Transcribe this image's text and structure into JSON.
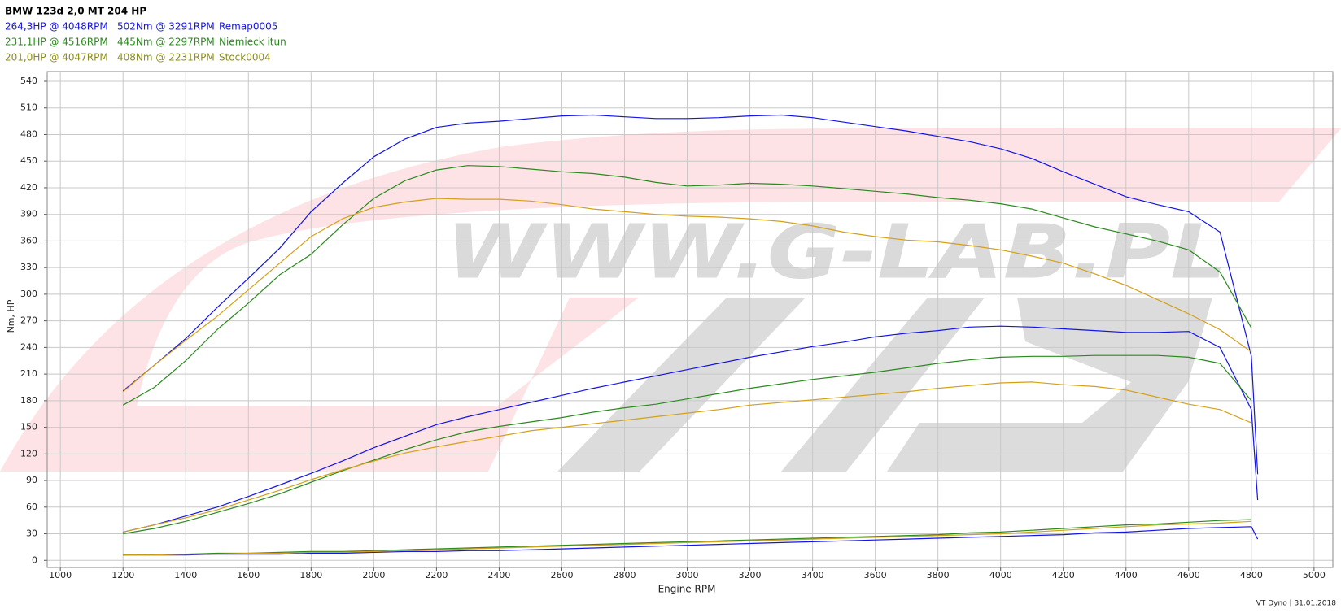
{
  "chart_data": {
    "type": "line",
    "title": "BMW 123d 2,0 MT 204 HP",
    "watermark": "WWW.G-LAB.PL",
    "x_label": "Engine RPM",
    "y_label": "Nm, HP",
    "footer": "VT Dyno | 31.01.2018",
    "xlim": [
      958,
      5060
    ],
    "ylim": [
      -8,
      551
    ],
    "xticks": [
      1000,
      1200,
      1400,
      1600,
      1800,
      2000,
      2200,
      2400,
      2600,
      2800,
      3000,
      3200,
      3400,
      3600,
      3800,
      4000,
      4200,
      4400,
      4600,
      4800,
      5000
    ],
    "yticks": [
      0,
      30,
      60,
      90,
      120,
      150,
      180,
      210,
      240,
      270,
      300,
      330,
      360,
      390,
      420,
      450,
      480,
      510,
      540
    ],
    "grid": true,
    "series": [
      {
        "name": "Remap0005",
        "color": "#1414e6",
        "power_summary": "264,3HP @  4048RPM",
        "torque_summary": "502Nm @ 3291RPM",
        "x": [
          1200,
          1300,
          1400,
          1500,
          1600,
          1700,
          1800,
          1900,
          2000,
          2100,
          2200,
          2300,
          2400,
          2500,
          2600,
          2700,
          2800,
          2900,
          3000,
          3100,
          3200,
          3300,
          3400,
          3500,
          3600,
          3700,
          3800,
          3900,
          4000,
          4100,
          4200,
          4300,
          4400,
          4500,
          4600,
          4700,
          4800,
          4820
        ],
        "torque": [
          191,
          220,
          250,
          285,
          318,
          352,
          393,
          425,
          455,
          475,
          488,
          493,
          495,
          498,
          501,
          502,
          500,
          498,
          498,
          499,
          501,
          502,
          499,
          494,
          489,
          484,
          478,
          472,
          464,
          453,
          438,
          424,
          410,
          401,
          393,
          370,
          230,
          97
        ],
        "power": [
          32,
          40,
          50,
          60,
          72,
          85,
          98,
          112,
          127,
          140,
          153,
          162,
          170,
          178,
          186,
          194,
          201,
          208,
          215,
          222,
          229,
          235,
          241,
          246,
          252,
          256,
          259,
          263,
          264,
          263,
          261,
          259,
          257,
          257,
          258,
          240,
          170,
          68
        ],
        "loss": [
          6,
          6,
          6,
          7,
          7,
          7,
          8,
          8,
          9,
          10,
          10,
          11,
          11,
          12,
          13,
          14,
          15,
          16,
          17,
          18,
          19,
          20,
          21,
          22,
          23,
          24,
          25,
          26,
          27,
          28,
          29,
          31,
          32,
          34,
          36,
          37,
          38,
          24
        ]
      },
      {
        "name": "Niemieck itun",
        "color": "#2a8a1e",
        "power_summary": "231,1HP @  4516RPM",
        "torque_summary": "445Nm @ 2297RPM",
        "x": [
          1200,
          1300,
          1400,
          1500,
          1600,
          1700,
          1800,
          1900,
          2000,
          2100,
          2200,
          2300,
          2400,
          2500,
          2600,
          2700,
          2800,
          2900,
          3000,
          3100,
          3200,
          3300,
          3400,
          3500,
          3600,
          3700,
          3800,
          3900,
          4000,
          4100,
          4200,
          4300,
          4400,
          4500,
          4600,
          4700,
          4800
        ],
        "torque": [
          175,
          195,
          225,
          260,
          290,
          322,
          345,
          378,
          408,
          428,
          440,
          445,
          444,
          441,
          438,
          436,
          432,
          426,
          422,
          423,
          425,
          424,
          422,
          419,
          416,
          413,
          409,
          406,
          402,
          396,
          386,
          376,
          368,
          360,
          350,
          325,
          262
        ],
        "power": [
          30,
          36,
          44,
          54,
          64,
          75,
          88,
          101,
          113,
          125,
          136,
          145,
          151,
          156,
          161,
          167,
          172,
          176,
          182,
          188,
          194,
          199,
          204,
          208,
          212,
          217,
          222,
          226,
          229,
          230,
          230,
          231,
          231,
          231,
          229,
          222,
          180
        ],
        "loss": [
          6,
          7,
          7,
          8,
          8,
          9,
          10,
          10,
          11,
          12,
          13,
          14,
          15,
          16,
          17,
          18,
          19,
          20,
          21,
          22,
          23,
          24,
          25,
          26,
          27,
          28,
          29,
          31,
          32,
          34,
          36,
          38,
          40,
          41,
          43,
          45,
          46
        ]
      },
      {
        "name": "Stock0004",
        "color": "#d4a017",
        "text_color": "#8c8c1c",
        "power_summary": "201,0HP @  4047RPM",
        "torque_summary": "408Nm @ 2231RPM",
        "x": [
          1200,
          1300,
          1400,
          1500,
          1600,
          1700,
          1800,
          1900,
          2000,
          2100,
          2200,
          2300,
          2400,
          2500,
          2600,
          2700,
          2800,
          2900,
          3000,
          3100,
          3200,
          3300,
          3400,
          3500,
          3600,
          3700,
          3800,
          3900,
          4000,
          4100,
          4200,
          4300,
          4400,
          4500,
          4600,
          4700,
          4800
        ],
        "torque": [
          190,
          220,
          248,
          275,
          305,
          335,
          365,
          385,
          398,
          404,
          408,
          407,
          407,
          405,
          401,
          396,
          393,
          390,
          388,
          387,
          385,
          382,
          377,
          370,
          365,
          361,
          359,
          355,
          350,
          343,
          335,
          323,
          310,
          294,
          278,
          260,
          235
        ],
        "power": [
          32,
          40,
          48,
          57,
          68,
          79,
          91,
          102,
          112,
          121,
          128,
          134,
          140,
          146,
          150,
          154,
          158,
          162,
          166,
          170,
          175,
          178,
          181,
          184,
          187,
          190,
          194,
          197,
          200,
          201,
          198,
          196,
          192,
          184,
          176,
          170,
          155
        ],
        "loss": [
          6,
          6,
          7,
          7,
          8,
          8,
          9,
          9,
          10,
          11,
          12,
          13,
          14,
          15,
          16,
          17,
          18,
          19,
          20,
          21,
          22,
          23,
          24,
          25,
          26,
          27,
          28,
          29,
          30,
          32,
          34,
          36,
          38,
          40,
          41,
          42,
          44
        ]
      }
    ]
  }
}
